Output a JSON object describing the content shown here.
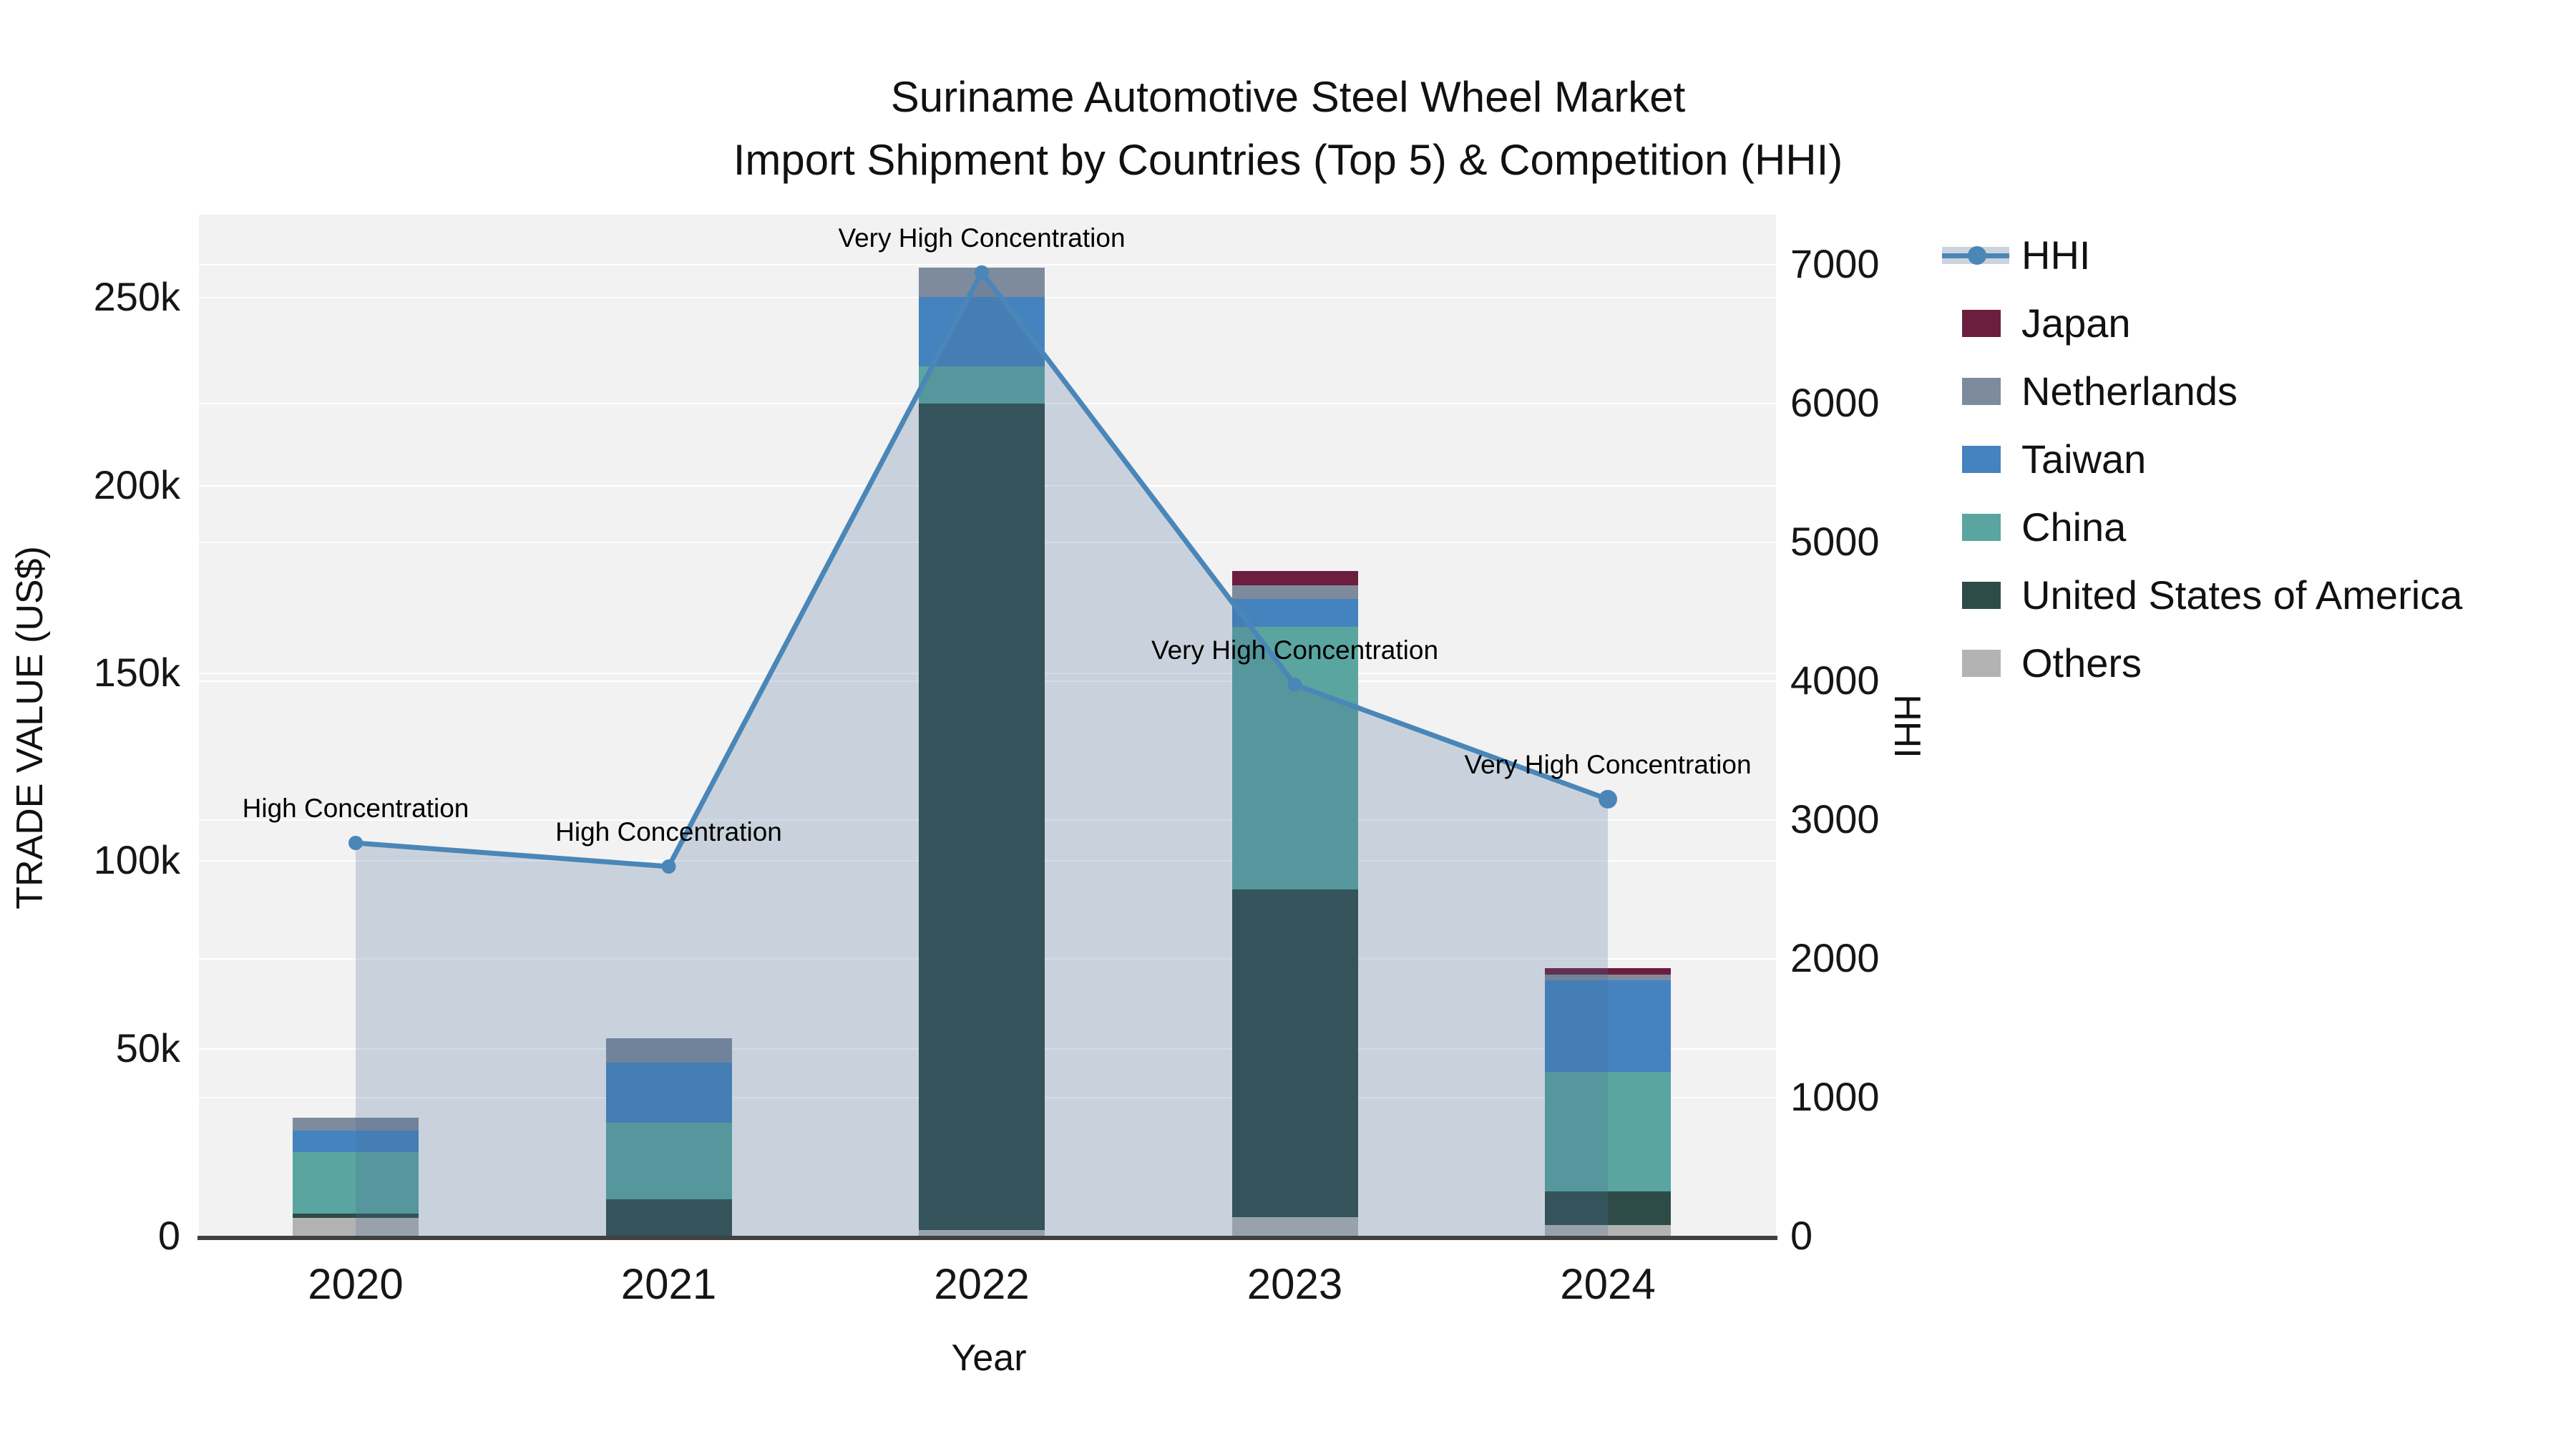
{
  "title": {
    "line1": "Suriname Automotive Steel Wheel Market",
    "line2": "Import Shipment by Countries (Top 5) & Competition (HHI)"
  },
  "axes": {
    "x": {
      "title": "Year",
      "categories": [
        "2020",
        "2021",
        "2022",
        "2023",
        "2024"
      ]
    },
    "left": {
      "title": "TRADE VALUE (US$)",
      "ticks": [
        {
          "label": "0",
          "value": 0
        },
        {
          "label": "50k",
          "value": 50000
        },
        {
          "label": "100k",
          "value": 100000
        },
        {
          "label": "150k",
          "value": 150000
        },
        {
          "label": "200k",
          "value": 200000
        },
        {
          "label": "250k",
          "value": 250000
        }
      ]
    },
    "right": {
      "title": "HHI",
      "ticks": [
        {
          "label": "0",
          "value": 0
        },
        {
          "label": "1000",
          "value": 1000
        },
        {
          "label": "2000",
          "value": 2000
        },
        {
          "label": "3000",
          "value": 3000
        },
        {
          "label": "4000",
          "value": 4000
        },
        {
          "label": "5000",
          "value": 5000
        },
        {
          "label": "6000",
          "value": 6000
        },
        {
          "label": "7000",
          "value": 7000
        }
      ]
    }
  },
  "legend": {
    "items": [
      {
        "label": "HHI",
        "type": "line"
      },
      {
        "label": "Japan",
        "type": "swatch",
        "color": "#6b1e3e"
      },
      {
        "label": "Netherlands",
        "type": "swatch",
        "color": "#7e8b9d"
      },
      {
        "label": "Taiwan",
        "type": "swatch",
        "color": "#4583bf"
      },
      {
        "label": "China",
        "type": "swatch",
        "color": "#5aa5a0"
      },
      {
        "label": "United States of America",
        "type": "swatch",
        "color": "#2e4b48"
      },
      {
        "label": "Others",
        "type": "swatch",
        "color": "#b3b3b3"
      }
    ]
  },
  "chart_data": {
    "type": "stacked-bar+line",
    "title": "Suriname Automotive Steel Wheel Market — Import Shipment by Countries (Top 5) & Competition (HHI)",
    "categories": [
      "2020",
      "2021",
      "2022",
      "2023",
      "2024"
    ],
    "xlabel": "Year",
    "ylabel_left": "TRADE VALUE (US$)",
    "ylabel_right": "HHI",
    "ylim_left": [
      0,
      272000
    ],
    "ylim_right": [
      0,
      7356
    ],
    "grid": true,
    "legend_position": "right",
    "series": [
      {
        "name": "Japan",
        "color": "#6b1e3e",
        "values": [
          0,
          0,
          0,
          3800,
          1700
        ]
      },
      {
        "name": "Netherlands",
        "color": "#7e8b9d",
        "values": [
          3400,
          6500,
          7800,
          3600,
          1500
        ]
      },
      {
        "name": "Taiwan",
        "color": "#4583bf",
        "values": [
          5700,
          16000,
          18500,
          7400,
          24400
        ]
      },
      {
        "name": "China",
        "color": "#5aa5a0",
        "values": [
          16400,
          20400,
          9900,
          69900,
          31800
        ]
      },
      {
        "name": "United States of America",
        "color": "#2e4b48",
        "values": [
          1100,
          9700,
          220200,
          87300,
          9000
        ]
      },
      {
        "name": "Others",
        "color": "#b3b3b3",
        "values": [
          4800,
          0,
          1500,
          5000,
          2900
        ]
      }
    ],
    "stack_order_bottom_to_top": [
      "Others",
      "United States of America",
      "China",
      "Taiwan",
      "Netherlands",
      "Japan"
    ],
    "line_series": {
      "name": "HHI",
      "axis": "right",
      "color": "#4a86b8",
      "area_fill": "rgba(70,110,150,0.24)",
      "values": [
        2830,
        2660,
        6940,
        3970,
        3145
      ]
    },
    "annotations": [
      {
        "category": "2020",
        "text": "High Concentration"
      },
      {
        "category": "2021",
        "text": "High Concentration"
      },
      {
        "category": "2022",
        "text": "Very High Concentration"
      },
      {
        "category": "2023",
        "text": "Very High Concentration"
      },
      {
        "category": "2024",
        "text": "Very High Concentration"
      }
    ]
  }
}
